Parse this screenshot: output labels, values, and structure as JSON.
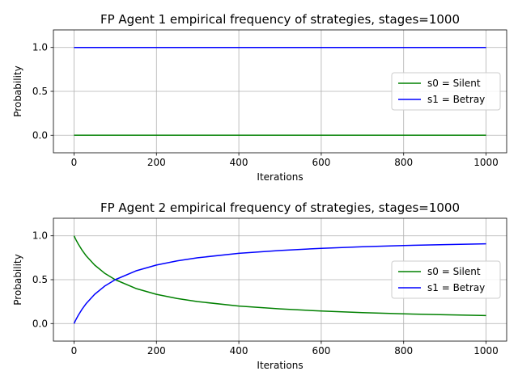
{
  "chart_data": [
    {
      "type": "line",
      "title": "FP Agent 1 empirical frequency of strategies, stages=1000",
      "xlabel": "Iterations",
      "ylabel": "Probability",
      "xlim": [
        -50,
        1050
      ],
      "ylim": [
        -0.2,
        1.2
      ],
      "xticks": [
        0,
        200,
        400,
        600,
        800,
        1000
      ],
      "xtick_labels": [
        "0",
        "200",
        "400",
        "600",
        "800",
        "1000"
      ],
      "yticks": [
        0.0,
        0.5,
        1.0
      ],
      "ytick_labels": [
        "0.0",
        "0.5",
        "1.0"
      ],
      "grid": true,
      "legend_position": "center-right",
      "series": [
        {
          "name": "s0 = Silent",
          "color": "#008000",
          "x": [
            0,
            100,
            200,
            300,
            400,
            500,
            600,
            700,
            800,
            900,
            1000
          ],
          "y": [
            0,
            0,
            0,
            0,
            0,
            0,
            0,
            0,
            0,
            0,
            0
          ]
        },
        {
          "name": "s1 = Betray",
          "color": "#0000ff",
          "x": [
            0,
            100,
            200,
            300,
            400,
            500,
            600,
            700,
            800,
            900,
            1000
          ],
          "y": [
            1,
            1,
            1,
            1,
            1,
            1,
            1,
            1,
            1,
            1,
            1
          ]
        }
      ]
    },
    {
      "type": "line",
      "title": "FP Agent 2 empirical frequency of strategies, stages=1000",
      "xlabel": "Iterations",
      "ylabel": "Probability",
      "xlim": [
        -50,
        1050
      ],
      "ylim": [
        -0.2,
        1.2
      ],
      "xticks": [
        0,
        200,
        400,
        600,
        800,
        1000
      ],
      "xtick_labels": [
        "0",
        "200",
        "400",
        "600",
        "800",
        "1000"
      ],
      "yticks": [
        0.0,
        0.5,
        1.0
      ],
      "ytick_labels": [
        "0.0",
        "0.5",
        "1.0"
      ],
      "grid": true,
      "legend_position": "center-right",
      "series": [
        {
          "name": "s0 = Silent",
          "color": "#008000",
          "x": [
            0,
            5,
            10,
            20,
            30,
            50,
            75,
            100,
            150,
            200,
            250,
            300,
            400,
            500,
            600,
            700,
            800,
            900,
            1000
          ],
          "y": [
            1.0,
            0.952,
            0.909,
            0.833,
            0.769,
            0.667,
            0.571,
            0.5,
            0.4,
            0.333,
            0.286,
            0.25,
            0.2,
            0.167,
            0.143,
            0.125,
            0.111,
            0.1,
            0.091
          ]
        },
        {
          "name": "s1 = Betray",
          "color": "#0000ff",
          "x": [
            0,
            5,
            10,
            20,
            30,
            50,
            75,
            100,
            150,
            200,
            250,
            300,
            400,
            500,
            600,
            700,
            800,
            900,
            1000
          ],
          "y": [
            0.0,
            0.048,
            0.091,
            0.167,
            0.231,
            0.333,
            0.429,
            0.5,
            0.6,
            0.667,
            0.714,
            0.75,
            0.8,
            0.833,
            0.857,
            0.875,
            0.889,
            0.9,
            0.909
          ]
        }
      ]
    }
  ]
}
